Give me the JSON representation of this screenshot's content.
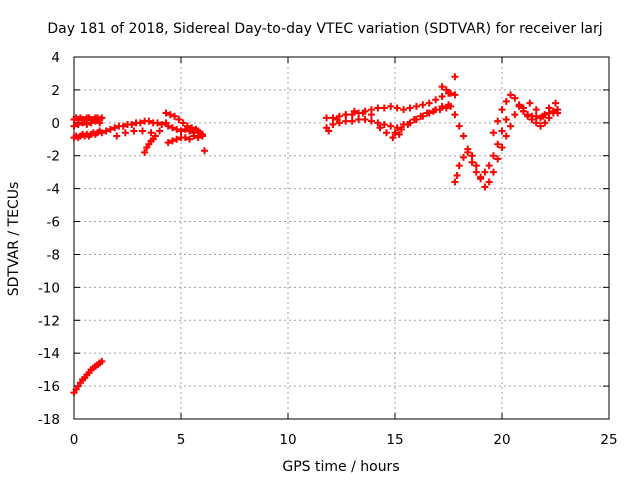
{
  "chart_data": {
    "type": "scatter",
    "title": "Day 181 of 2018, Sidereal Day-to-day VTEC variation (SDTVAR) for receiver larj",
    "xlabel": "GPS time / hours",
    "ylabel": "SDTVAR / TECUs",
    "xlim": [
      0,
      25
    ],
    "ylim": [
      -18,
      4
    ],
    "xticks": [
      "0",
      "5",
      "10",
      "15",
      "20",
      "25"
    ],
    "yticks": [
      "4",
      "2",
      "0",
      "-2",
      "-4",
      "-6",
      "-8",
      "-10",
      "-12",
      "-14",
      "-16",
      "-18"
    ],
    "grid": true,
    "marker": "+",
    "color": "#ff0000",
    "series": [
      {
        "x": [
          0.0,
          0.1,
          0.2,
          0.3,
          0.4,
          0.5,
          0.6,
          0.7,
          0.8,
          0.9,
          1.0,
          1.1,
          1.2,
          1.3,
          0.0,
          0.1,
          0.2,
          0.3,
          0.4,
          0.5,
          0.6,
          0.7,
          0.8,
          0.9,
          1.0,
          1.1,
          1.2,
          1.3,
          0.0,
          0.2,
          0.4,
          0.6,
          0.8,
          1.0,
          1.2,
          1.5,
          1.7,
          1.9,
          2.1,
          2.3,
          2.5,
          2.7,
          2.9,
          3.1,
          3.3,
          3.5,
          3.7,
          3.9,
          4.1,
          4.3,
          2.0,
          2.4,
          2.8,
          3.2,
          3.6,
          4.0,
          3.3,
          3.4,
          3.5,
          3.6,
          3.7,
          3.8,
          4.3,
          4.5,
          4.7,
          4.9,
          5.1,
          5.3,
          5.5,
          5.7,
          5.9,
          6.0,
          4.4,
          4.6,
          4.8,
          5.0,
          5.2,
          5.4,
          5.6,
          5.8,
          6.0,
          4.4,
          4.6,
          4.8,
          5.0,
          5.2,
          5.4,
          5.6,
          5.8,
          6.1,
          0.0,
          0.1,
          0.2,
          0.3,
          0.4,
          0.5,
          0.6,
          0.7,
          0.8,
          0.9,
          1.0,
          1.1,
          1.2,
          1.3,
          11.8,
          12.1,
          12.4,
          12.7,
          13.0,
          13.3,
          13.6,
          13.9,
          14.2,
          14.5,
          14.8,
          15.1,
          15.4,
          15.7,
          16.0,
          16.3,
          16.6,
          16.9,
          17.2,
          17.5,
          11.8,
          12.1,
          12.4,
          12.7,
          13.0,
          13.3,
          13.6,
          13.9,
          14.2,
          14.5,
          14.8,
          15.1,
          15.4,
          15.7,
          16.0,
          16.3,
          16.6,
          16.9,
          17.2,
          17.5,
          11.9,
          12.3,
          12.7,
          13.1,
          13.5,
          13.9,
          14.3,
          14.6,
          14.9,
          15.2,
          15.0,
          15.3,
          15.6,
          15.9,
          16.2,
          16.5,
          16.8,
          17.1,
          17.4,
          17.2,
          17.4,
          17.6,
          17.8,
          17.6,
          17.8,
          18.0,
          18.2,
          18.4,
          18.6,
          18.8,
          19.0,
          19.2,
          19.4,
          19.6,
          19.8,
          20.0,
          20.2,
          17.8,
          17.9,
          18.0,
          18.2,
          18.4,
          18.6,
          18.8,
          19.0,
          19.2,
          19.4,
          19.6,
          19.8,
          17.8,
          19.6,
          19.8,
          20.0,
          20.2,
          20.4,
          20.6,
          20.8,
          21.0,
          21.2,
          21.4,
          21.6,
          21.8,
          22.0,
          22.2,
          22.4,
          22.6,
          20.0,
          20.2,
          20.4,
          20.6,
          20.8,
          21.0,
          21.2,
          21.4,
          21.6,
          21.8,
          22.0,
          22.2,
          22.4,
          22.6,
          21.0,
          21.3,
          21.6,
          21.9,
          22.2,
          22.5
        ],
        "y": [
          0.2,
          0.3,
          0.2,
          0.3,
          0.2,
          0.2,
          0.3,
          0.3,
          0.2,
          0.2,
          0.3,
          0.3,
          0.2,
          0.3,
          -0.9,
          -0.8,
          -0.9,
          -0.8,
          -0.7,
          -0.8,
          -0.7,
          -0.8,
          -0.7,
          -0.6,
          -0.7,
          -0.6,
          -0.5,
          -0.6,
          -0.2,
          -0.1,
          0.0,
          -0.1,
          0.0,
          0.1,
          0.0,
          -0.5,
          -0.4,
          -0.3,
          -0.2,
          -0.2,
          -0.1,
          -0.1,
          0.0,
          0.0,
          0.1,
          0.1,
          0.0,
          0.0,
          -0.1,
          0.0,
          -0.8,
          -0.6,
          -0.5,
          -0.5,
          -0.6,
          -0.5,
          -1.8,
          -1.5,
          -1.3,
          -1.1,
          -1.0,
          -0.8,
          0.6,
          0.5,
          0.4,
          0.2,
          0.0,
          -0.2,
          -0.3,
          -0.4,
          -0.6,
          -0.7,
          -0.2,
          -0.3,
          -0.4,
          -0.5,
          -0.4,
          -0.5,
          -0.6,
          -0.5,
          -0.8,
          -1.2,
          -1.1,
          -1.0,
          -0.9,
          -0.9,
          -1.0,
          -0.8,
          -0.9,
          -1.7,
          -16.4,
          -16.2,
          -16.0,
          -15.8,
          -15.6,
          -15.5,
          -15.3,
          -15.2,
          -15.0,
          -14.9,
          -14.8,
          -14.7,
          -14.6,
          -14.5,
          0.3,
          0.3,
          0.4,
          0.5,
          0.5,
          0.6,
          0.7,
          0.8,
          0.9,
          0.9,
          1.0,
          0.9,
          0.8,
          0.9,
          1.0,
          1.1,
          1.2,
          1.4,
          1.6,
          1.8,
          -0.3,
          -0.1,
          0.0,
          0.1,
          0.1,
          0.2,
          0.2,
          0.1,
          0.0,
          -0.1,
          -0.2,
          -0.3,
          -0.1,
          0.0,
          0.2,
          0.4,
          0.6,
          0.8,
          1.0,
          1.1,
          -0.5,
          0.2,
          0.5,
          0.7,
          0.6,
          0.5,
          -0.3,
          -0.6,
          -0.9,
          -0.7,
          -0.6,
          -0.4,
          -0.1,
          0.2,
          0.4,
          0.6,
          0.7,
          0.8,
          0.9,
          2.2,
          2.0,
          1.8,
          1.7,
          1.0,
          0.5,
          -0.2,
          -0.8,
          -1.6,
          -2.4,
          -3.0,
          -3.3,
          -3.0,
          -2.6,
          -2.0,
          -1.3,
          -0.5,
          0.2,
          -3.6,
          -3.2,
          -2.6,
          -2.1,
          -1.8,
          -2.0,
          -2.6,
          -3.4,
          -3.9,
          -3.6,
          -3.0,
          -2.2,
          2.8,
          -0.6,
          0.1,
          0.8,
          1.3,
          1.7,
          1.5,
          1.1,
          0.7,
          0.4,
          0.2,
          0.0,
          -0.2,
          0.0,
          0.3,
          0.6,
          0.8,
          -1.5,
          -0.8,
          -0.2,
          0.5,
          1.0,
          0.7,
          0.5,
          0.4,
          0.4,
          0.3,
          0.5,
          0.6,
          0.7,
          0.6,
          0.9,
          1.2,
          0.8,
          0.4,
          0.9,
          1.2
        ]
      }
    ]
  }
}
